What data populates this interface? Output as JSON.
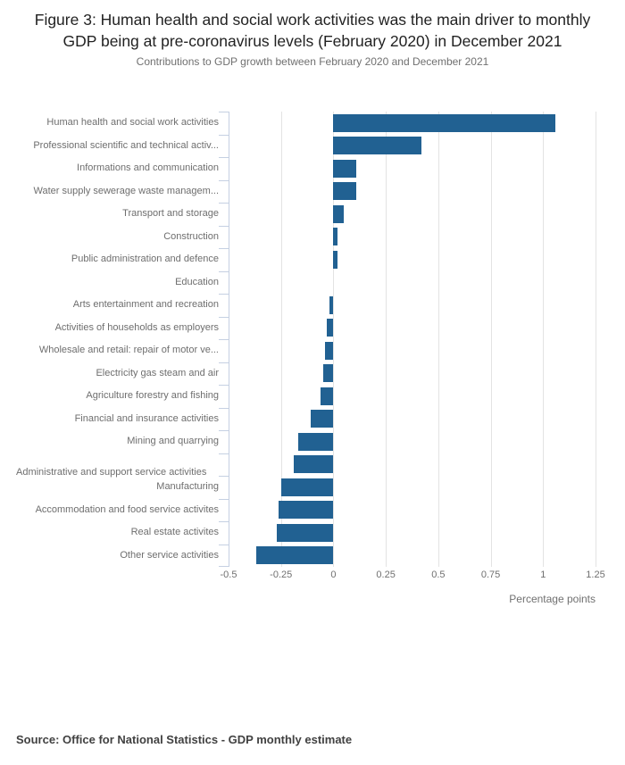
{
  "figure": {
    "title": "Figure 3: Human health and social work activities was the main driver to monthly GDP being at pre-coronavirus levels (February 2020) in December 2021",
    "subtitle": "Contributions to GDP growth between February 2020 and December 2021",
    "source": "Source: Office for National Statistics - GDP monthly estimate"
  },
  "chart_data": {
    "type": "bar",
    "orientation": "horizontal",
    "title": "Figure 3: Human health and social work activities was the main driver to monthly GDP being at pre-coronavirus levels (February 2020) in December 2021",
    "subtitle": "Contributions to GDP growth between February 2020 and December 2021",
    "categories": [
      "Human health and social work activities",
      "Professional scientific and technical activ...",
      "Informations and communication",
      "Water supply sewerage waste managem...",
      "Transport and storage",
      "Construction",
      "Public administration and defence",
      "Education",
      "Arts entertainment and recreation",
      "Activities of households as employers",
      "Wholesale and retail: repair of motor ve...",
      "Electricity gas steam and air",
      "Agriculture forestry and fishing",
      "Financial and insurance activities",
      "Mining and quarrying",
      "Administrative and support service activities",
      "Manufacturing",
      "Accommodation and food service activites",
      "Real estate activites",
      "Other service activities"
    ],
    "values": [
      1.06,
      0.42,
      0.11,
      0.11,
      0.05,
      0.02,
      0.02,
      0,
      -0.02,
      -0.03,
      -0.04,
      -0.05,
      -0.06,
      -0.11,
      -0.17,
      -0.19,
      -0.25,
      -0.26,
      -0.27,
      -0.37
    ],
    "xlabel": "Percentage points",
    "xlim": [
      -0.5,
      1.25
    ],
    "xticks": [
      -0.5,
      -0.25,
      0,
      0.25,
      0.5,
      0.75,
      1,
      1.25
    ],
    "xtick_labels": [
      "-0.5",
      "-0.25",
      "0",
      "0.25",
      "0.5",
      "0.75",
      "1",
      "1.25"
    ],
    "grid": "vertical-only",
    "legend": "none",
    "bar_color": "#216192",
    "grid_color": "#e3e3e3",
    "axis_color": "#c5d0e2"
  }
}
